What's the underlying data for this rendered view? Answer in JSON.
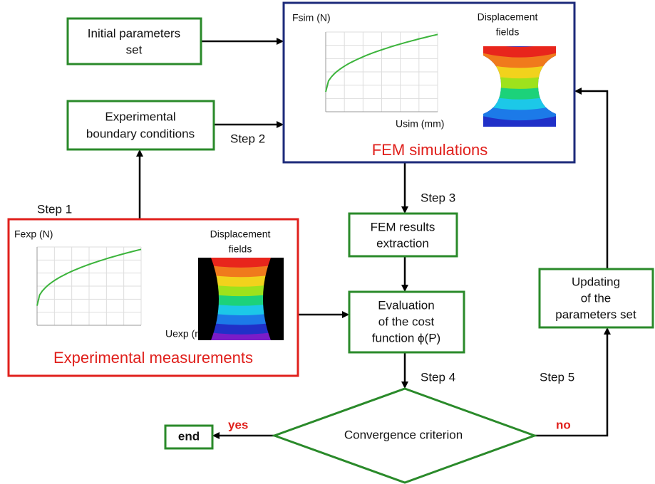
{
  "nodes": {
    "initial_parameters": {
      "lines": [
        "Initial parameters",
        "set"
      ]
    },
    "boundary_conditions": {
      "lines": [
        "Experimental",
        "boundary conditions"
      ]
    },
    "fem_simulations": {
      "y_label": "Fsim (N)",
      "x_label": "Usim (mm)",
      "field_label": [
        "Displacement",
        "fields"
      ],
      "title": "FEM simulations"
    },
    "experimental_measurements": {
      "y_label": "Fexp (N)",
      "x_label": "Uexp (mm)",
      "field_label": [
        "Displacement",
        "fields"
      ],
      "title": "Experimental measurements"
    },
    "results_extraction": {
      "lines": [
        "FEM results",
        "extraction"
      ]
    },
    "cost_function": {
      "lines": [
        "Evaluation",
        "of the cost",
        "function ϕ(P)"
      ]
    },
    "convergence": {
      "label": "Convergence criterion"
    },
    "end": {
      "label": "end"
    },
    "updating": {
      "lines": [
        "Updating",
        "of the",
        "parameters set"
      ]
    }
  },
  "steps": [
    "Step 1",
    "Step 2",
    "Step 3",
    "Step 4",
    "Step 5"
  ],
  "branches": {
    "yes": "yes",
    "no": "no"
  }
}
